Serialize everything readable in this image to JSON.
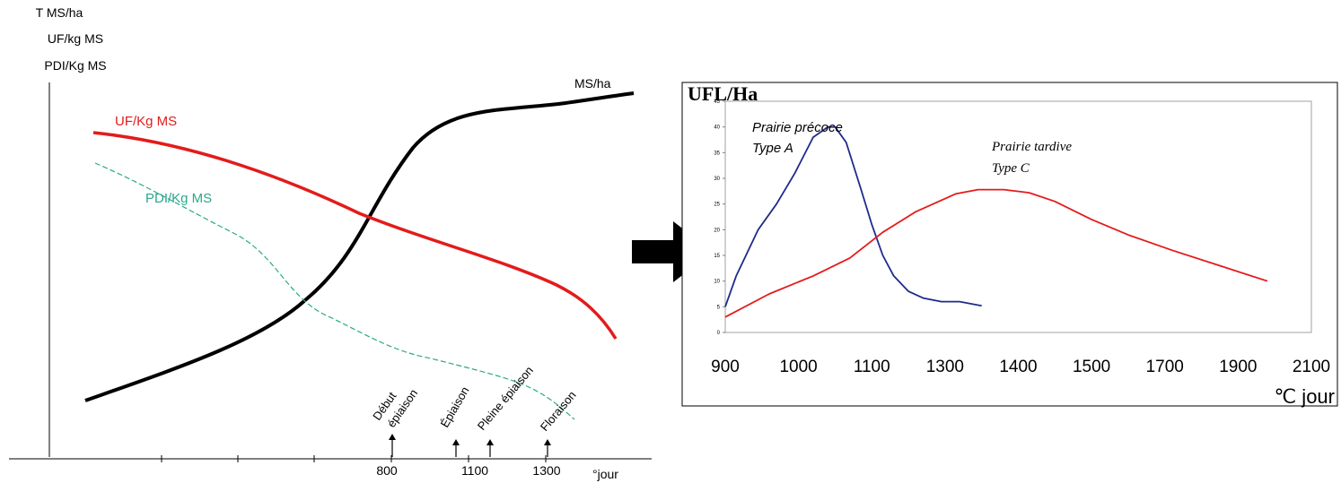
{
  "colors": {
    "black": "#000000",
    "red": "#e31b1b",
    "teal": "#2aa88a",
    "navy": "#1f2a8a",
    "arrow": "#000000"
  },
  "chart_data": [
    {
      "type": "line",
      "ylabel_lines": [
        "T MS/ha",
        "UF/kg MS",
        "PDI/Kg MS"
      ],
      "xunit": "°jour",
      "x_tick_labels": [
        "800",
        "1100",
        "1300"
      ],
      "grid": false,
      "series": [
        {
          "name": "MS/ha",
          "label": "MS/ha",
          "style": "solid-thick",
          "color": "#000000"
        },
        {
          "name": "UF/Kg MS",
          "label": "UF/Kg MS",
          "style": "solid-thick",
          "color": "#e31b1b"
        },
        {
          "name": "PDI/Kg MS",
          "label": "PDI/Kg MS",
          "style": "dashed",
          "color": "#2aa88a"
        }
      ],
      "stages": [
        "Début épiaison",
        "Épiaison",
        "Pleine épiaison",
        "Floraison"
      ]
    },
    {
      "type": "line",
      "title": "UFL/Ha",
      "xlabel": "℃ jour",
      "categories": [
        "900",
        "1000",
        "1100",
        "1300",
        "1400",
        "1500",
        "1700",
        "1900",
        "2100"
      ],
      "y_ticks": [
        "0",
        "5",
        "10",
        "15",
        "20",
        "25",
        "30",
        "35",
        "40",
        "45"
      ],
      "ylim": [
        0,
        45
      ],
      "series": [
        {
          "name": "Prairie précoce Type A",
          "label_line1": "Prairie précoce",
          "label_line2": "Type A",
          "color": "#1f2a8a",
          "points": [
            [
              0,
              5
            ],
            [
              0.3,
              11
            ],
            [
              0.9,
              20
            ],
            [
              1.4,
              25
            ],
            [
              1.9,
              31
            ],
            [
              2.4,
              38
            ],
            [
              2.8,
              40
            ],
            [
              3.0,
              40
            ],
            [
              3.3,
              37
            ],
            [
              3.7,
              28
            ],
            [
              4.0,
              21
            ],
            [
              4.3,
              15
            ],
            [
              4.6,
              11
            ],
            [
              5.0,
              8
            ],
            [
              5.4,
              6.7
            ],
            [
              5.9,
              6
            ],
            [
              6.4,
              6
            ],
            [
              7.0,
              5.2
            ]
          ]
        },
        {
          "name": "Prairie tardive Type C",
          "label_line1": "Prairie tardive",
          "label_line2": "Type C",
          "color": "#e31b1b",
          "points": [
            [
              0,
              3
            ],
            [
              1.2,
              7.5
            ],
            [
              2.4,
              11
            ],
            [
              3.4,
              14.5
            ],
            [
              4.3,
              19.5
            ],
            [
              5.2,
              23.5
            ],
            [
              6.3,
              27
            ],
            [
              6.9,
              27.8
            ],
            [
              7.6,
              27.8
            ],
            [
              8.3,
              27.2
            ],
            [
              9.0,
              25.5
            ],
            [
              10.0,
              22
            ],
            [
              11.0,
              19
            ],
            [
              12.2,
              16
            ],
            [
              13.5,
              13
            ],
            [
              14.8,
              10
            ]
          ]
        }
      ]
    }
  ]
}
